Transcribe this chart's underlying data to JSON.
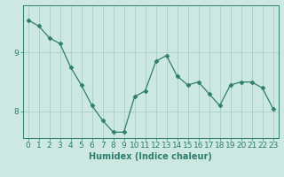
{
  "x": [
    0,
    1,
    2,
    3,
    4,
    5,
    6,
    7,
    8,
    9,
    10,
    11,
    12,
    13,
    14,
    15,
    16,
    17,
    18,
    19,
    20,
    21,
    22,
    23
  ],
  "y": [
    9.55,
    9.45,
    9.25,
    9.15,
    8.75,
    8.45,
    8.1,
    7.85,
    7.65,
    7.65,
    8.25,
    8.35,
    8.85,
    8.95,
    8.6,
    8.45,
    8.5,
    8.3,
    8.1,
    8.45,
    8.5,
    8.5,
    8.4,
    8.05
  ],
  "line_color": "#2e7d6e",
  "marker": "D",
  "marker_size": 2.5,
  "bg_color": "#cce8e0",
  "grid_color": "#aacfc8",
  "axis_color": "#2e7d6e",
  "xlabel": "Humidex (Indice chaleur)",
  "ylabel": "",
  "xlim": [
    -0.5,
    23.5
  ],
  "ylim": [
    7.55,
    9.8
  ],
  "yticks": [
    8,
    9
  ],
  "xticks": [
    0,
    1,
    2,
    3,
    4,
    5,
    6,
    7,
    8,
    9,
    10,
    11,
    12,
    13,
    14,
    15,
    16,
    17,
    18,
    19,
    20,
    21,
    22,
    23
  ],
  "label_fontsize": 7,
  "tick_fontsize": 6.5
}
